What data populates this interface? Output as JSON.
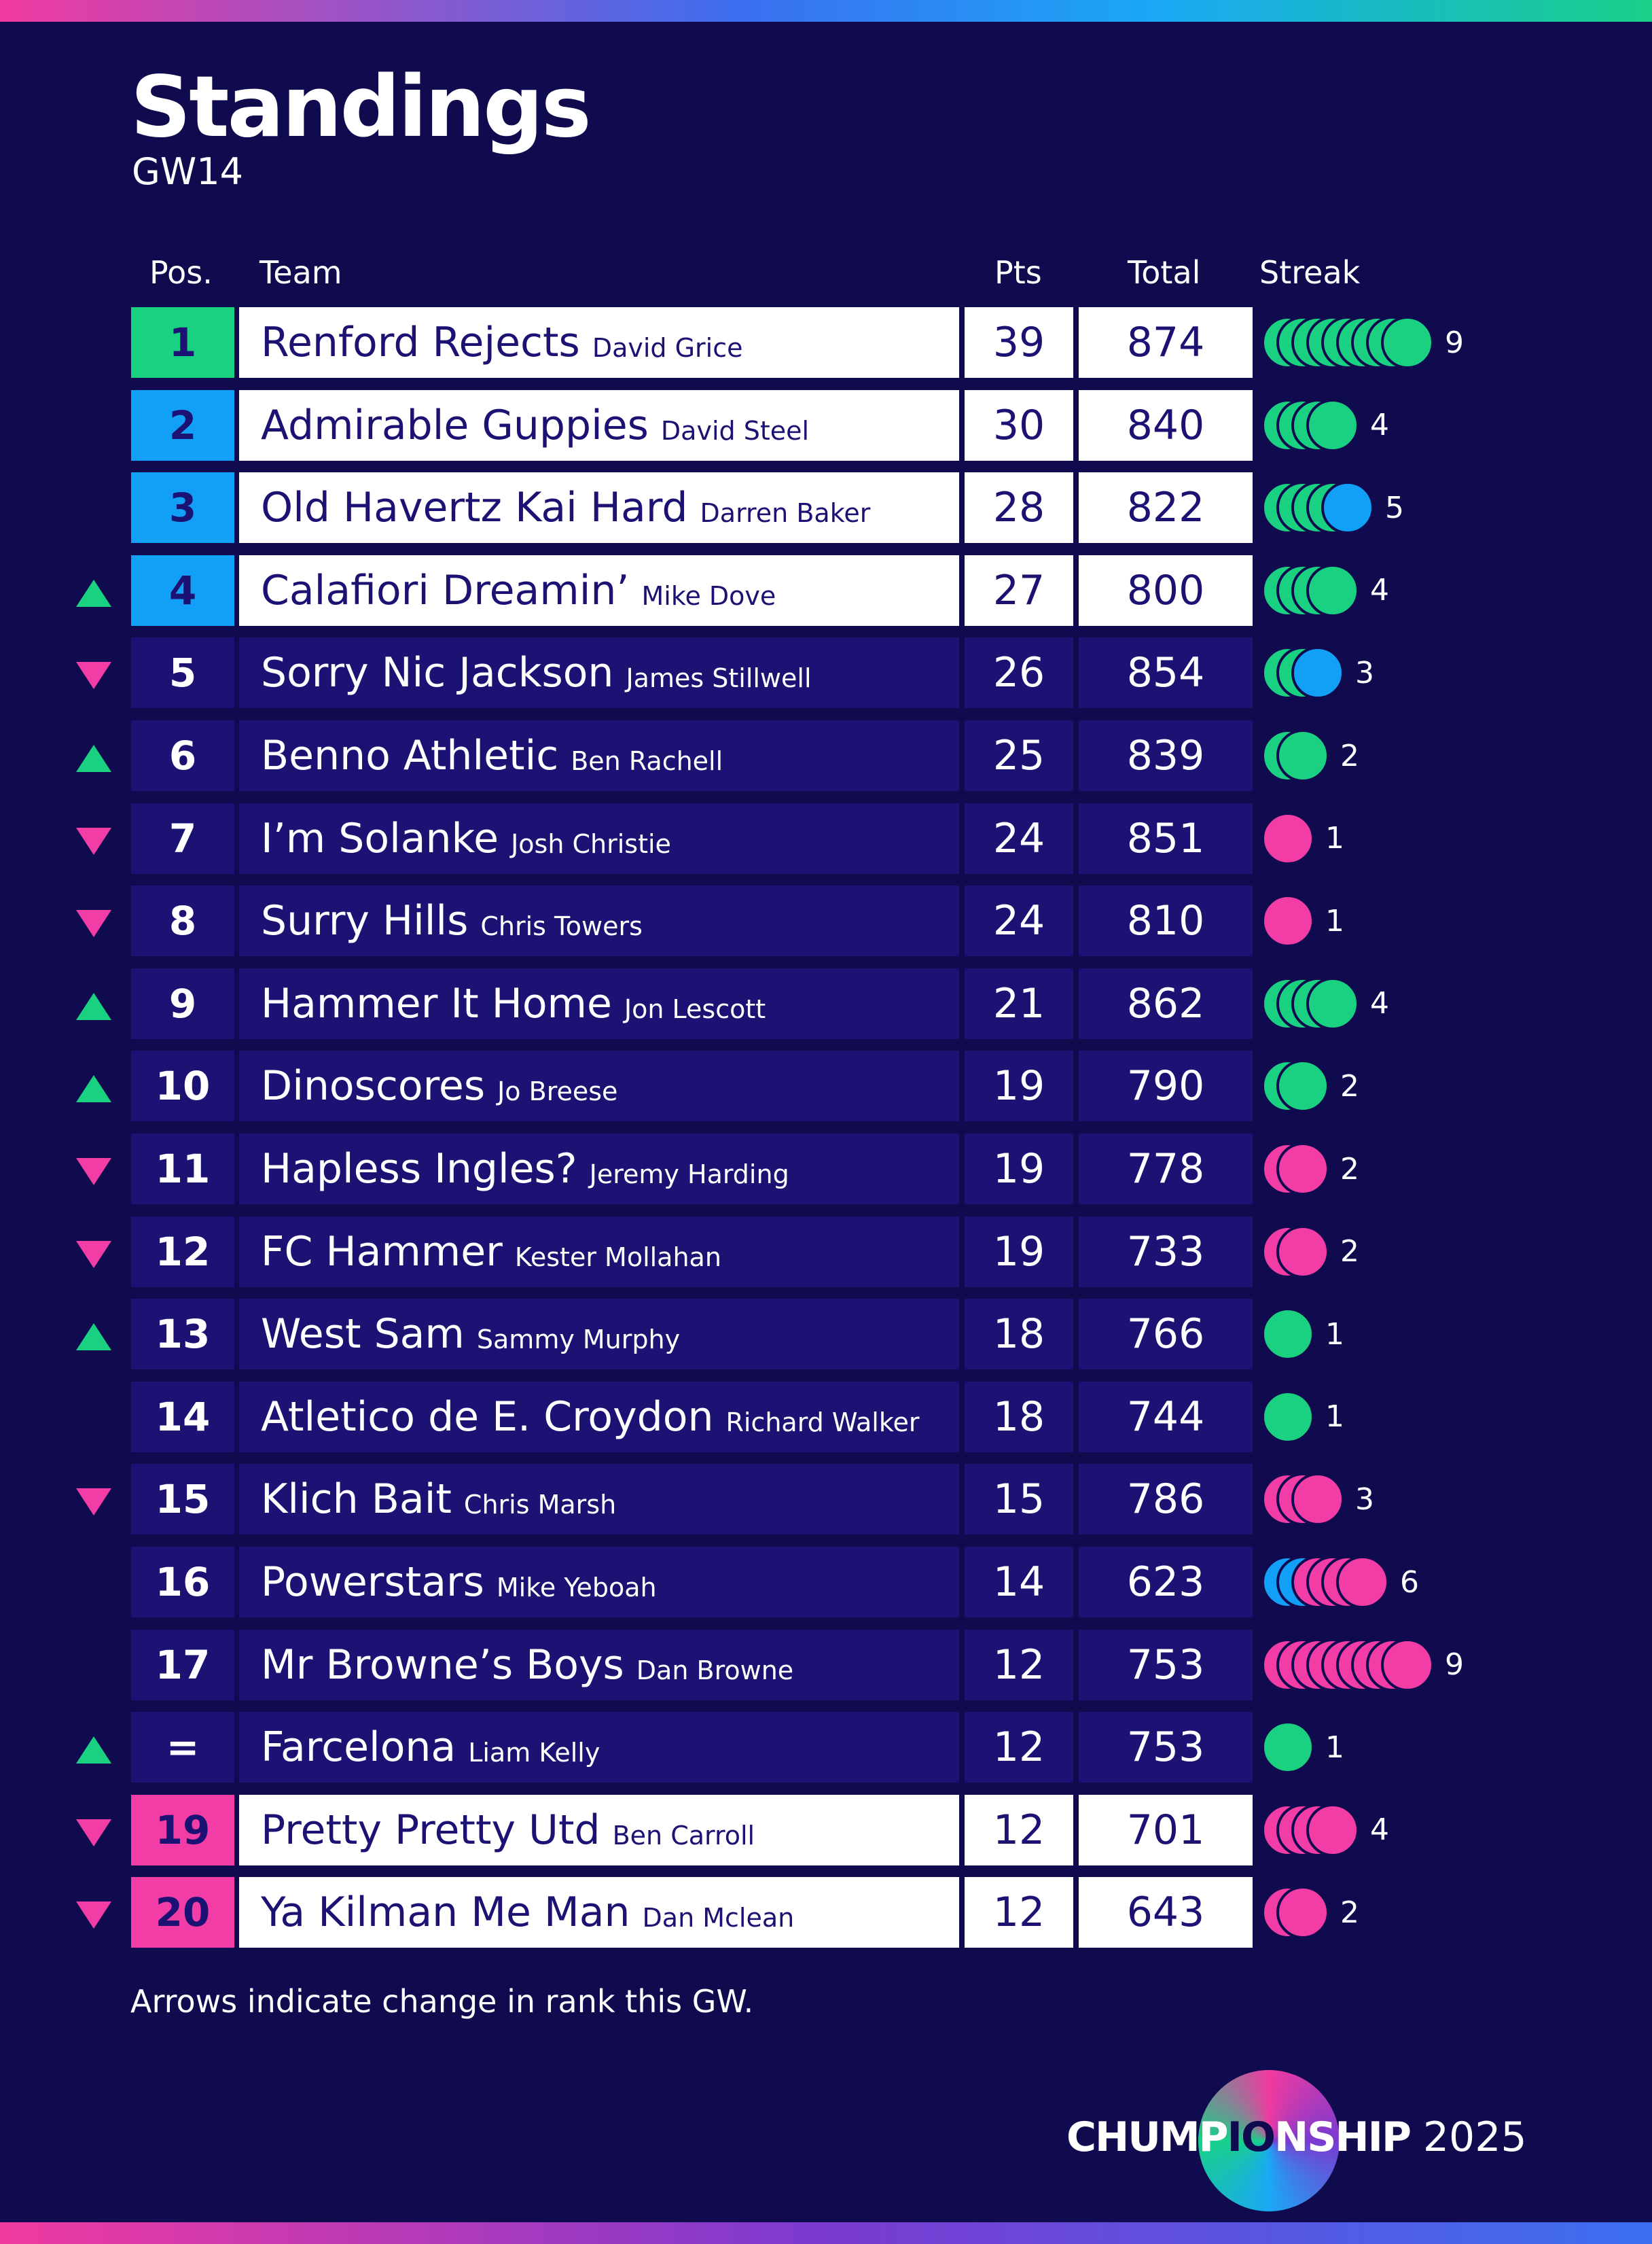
{
  "header": {
    "title": "Standings",
    "subtitle": "GW14"
  },
  "columns": {
    "pos": "Pos.",
    "team": "Team",
    "pts": "Pts",
    "total": "Total",
    "streak": "Streak"
  },
  "colors": {
    "green": "#19d181",
    "blue": "#11a0f5",
    "pink": "#f23ca6",
    "dark_row": "#1c1273",
    "background": "#100a4e"
  },
  "rows": [
    {
      "pos": "1",
      "team": "Renford Rejects",
      "manager": "David Grice",
      "pts": "39",
      "total": "874",
      "move": "none",
      "style": "light",
      "pos_color": "green",
      "streak": [
        "green",
        "green",
        "green",
        "green",
        "green",
        "green",
        "green",
        "green",
        "green"
      ],
      "streak_count": "9"
    },
    {
      "pos": "2",
      "team": "Admirable Guppies",
      "manager": "David Steel",
      "pts": "30",
      "total": "840",
      "move": "none",
      "style": "light",
      "pos_color": "blue",
      "streak": [
        "green",
        "green",
        "green",
        "green"
      ],
      "streak_count": "4"
    },
    {
      "pos": "3",
      "team": "Old Havertz Kai Hard",
      "manager": "Darren Baker",
      "pts": "28",
      "total": "822",
      "move": "none",
      "style": "light",
      "pos_color": "blue",
      "streak": [
        "green",
        "green",
        "green",
        "green",
        "blue"
      ],
      "streak_count": "5"
    },
    {
      "pos": "4",
      "team": "Calafiori Dreamin’",
      "manager": "Mike Dove",
      "pts": "27",
      "total": "800",
      "move": "up",
      "style": "light",
      "pos_color": "blue",
      "streak": [
        "green",
        "green",
        "green",
        "green"
      ],
      "streak_count": "4"
    },
    {
      "pos": "5",
      "team": "Sorry Nic Jackson",
      "manager": "James Stillwell",
      "pts": "26",
      "total": "854",
      "move": "down",
      "style": "dark",
      "pos_color": "dark",
      "streak": [
        "green",
        "green",
        "blue"
      ],
      "streak_count": "3"
    },
    {
      "pos": "6",
      "team": "Benno Athletic",
      "manager": "Ben Rachell",
      "pts": "25",
      "total": "839",
      "move": "up",
      "style": "dark",
      "pos_color": "dark",
      "streak": [
        "green",
        "green"
      ],
      "streak_count": "2"
    },
    {
      "pos": "7",
      "team": "I’m Solanke",
      "manager": "Josh Christie",
      "pts": "24",
      "total": "851",
      "move": "down",
      "style": "dark",
      "pos_color": "dark",
      "streak": [
        "pink"
      ],
      "streak_count": "1"
    },
    {
      "pos": "8",
      "team": "Surry Hills",
      "manager": "Chris Towers",
      "pts": "24",
      "total": "810",
      "move": "down",
      "style": "dark",
      "pos_color": "dark",
      "streak": [
        "pink"
      ],
      "streak_count": "1"
    },
    {
      "pos": "9",
      "team": "Hammer It Home",
      "manager": "Jon Lescott",
      "pts": "21",
      "total": "862",
      "move": "up",
      "style": "dark",
      "pos_color": "dark",
      "streak": [
        "green",
        "green",
        "green",
        "green"
      ],
      "streak_count": "4"
    },
    {
      "pos": "10",
      "team": "Dinoscores",
      "manager": "Jo Breese",
      "pts": "19",
      "total": "790",
      "move": "up",
      "style": "dark",
      "pos_color": "dark",
      "streak": [
        "green",
        "green"
      ],
      "streak_count": "2"
    },
    {
      "pos": "11",
      "team": "Hapless Ingles?",
      "manager": "Jeremy Harding",
      "pts": "19",
      "total": "778",
      "move": "down",
      "style": "dark",
      "pos_color": "dark",
      "streak": [
        "pink",
        "pink"
      ],
      "streak_count": "2"
    },
    {
      "pos": "12",
      "team": "FC Hammer",
      "manager": "Kester Mollahan",
      "pts": "19",
      "total": "733",
      "move": "down",
      "style": "dark",
      "pos_color": "dark",
      "streak": [
        "pink",
        "pink"
      ],
      "streak_count": "2"
    },
    {
      "pos": "13",
      "team": "West Sam",
      "manager": "Sammy Murphy",
      "pts": "18",
      "total": "766",
      "move": "up",
      "style": "dark",
      "pos_color": "dark",
      "streak": [
        "green"
      ],
      "streak_count": "1"
    },
    {
      "pos": "14",
      "team": "Atletico de E. Croydon",
      "manager": "Richard Walker",
      "pts": "18",
      "total": "744",
      "move": "none",
      "style": "dark",
      "pos_color": "dark",
      "streak": [
        "green"
      ],
      "streak_count": "1"
    },
    {
      "pos": "15",
      "team": "Klich Bait",
      "manager": "Chris Marsh",
      "pts": "15",
      "total": "786",
      "move": "down",
      "style": "dark",
      "pos_color": "dark",
      "streak": [
        "pink",
        "pink",
        "pink"
      ],
      "streak_count": "3"
    },
    {
      "pos": "16",
      "team": "Powerstars",
      "manager": "Mike Yeboah",
      "pts": "14",
      "total": "623",
      "move": "none",
      "style": "dark",
      "pos_color": "dark",
      "streak": [
        "blue",
        "blue",
        "pink",
        "pink",
        "pink",
        "pink"
      ],
      "streak_count": "6"
    },
    {
      "pos": "17",
      "team": "Mr Browne’s Boys",
      "manager": "Dan Browne",
      "pts": "12",
      "total": "753",
      "move": "none",
      "style": "dark",
      "pos_color": "dark",
      "streak": [
        "pink",
        "pink",
        "pink",
        "pink",
        "pink",
        "pink",
        "pink",
        "pink",
        "pink"
      ],
      "streak_count": "9"
    },
    {
      "pos": "=",
      "team": "Farcelona",
      "manager": "Liam Kelly",
      "pts": "12",
      "total": "753",
      "move": "up",
      "style": "dark",
      "pos_color": "dark",
      "streak": [
        "green"
      ],
      "streak_count": "1"
    },
    {
      "pos": "19",
      "team": "Pretty Pretty Utd",
      "manager": "Ben Carroll",
      "pts": "12",
      "total": "701",
      "move": "down",
      "style": "light",
      "pos_color": "pink",
      "streak": [
        "pink",
        "pink",
        "pink",
        "pink"
      ],
      "streak_count": "4"
    },
    {
      "pos": "20",
      "team": "Ya Kilman Me Man",
      "manager": "Dan Mclean",
      "pts": "12",
      "total": "643",
      "move": "down",
      "style": "light",
      "pos_color": "pink",
      "streak": [
        "pink",
        "pink"
      ],
      "streak_count": "2"
    }
  ],
  "footnote": "Arrows indicate change in rank this GW.",
  "logo": {
    "text_before": "CHUMP",
    "text_highlight": "IO",
    "text_after": "NSHIP",
    "year": "2025"
  }
}
